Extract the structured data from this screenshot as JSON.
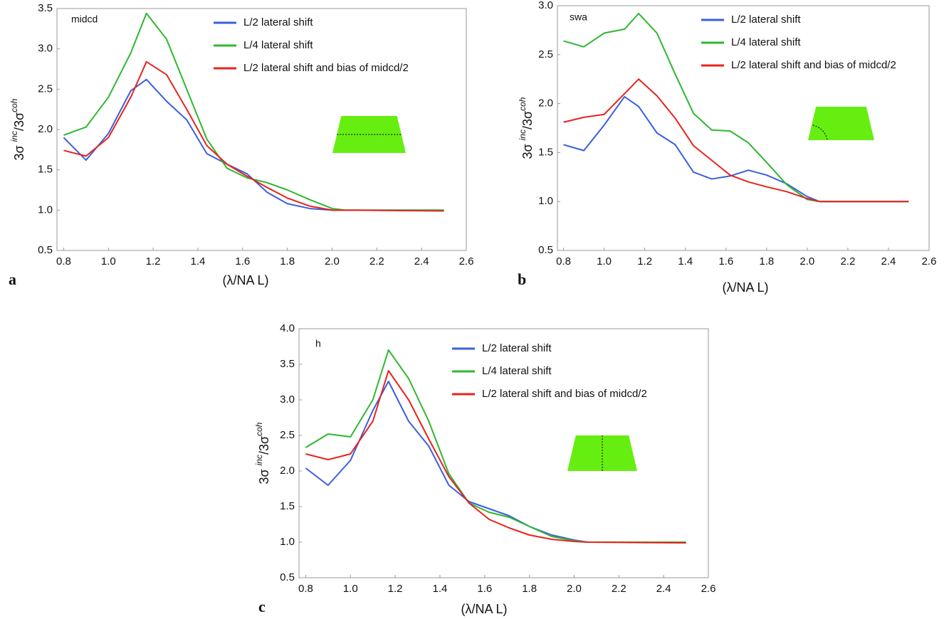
{
  "chart_data": [
    {
      "type": "line",
      "panel_label": "a",
      "annotation": "midcd",
      "ylabel": [
        "3σ ",
        "inc",
        "/3σ",
        "coh"
      ],
      "xlabel": "(λ/NA L)",
      "x": [
        0.8,
        0.9,
        1.0,
        1.1,
        1.17,
        1.26,
        1.35,
        1.44,
        1.53,
        1.62,
        1.71,
        1.8,
        1.9,
        2.0,
        2.06,
        2.5
      ],
      "series": [
        {
          "name": "L/2 lateral shift",
          "color": "#3a5fe0",
          "values": [
            1.9,
            1.62,
            1.95,
            2.48,
            2.62,
            2.35,
            2.12,
            1.7,
            1.57,
            1.45,
            1.22,
            1.08,
            1.02,
            1.0,
            1.0,
            1.0
          ]
        },
        {
          "name": "L/4 lateral shift",
          "color": "#2eb82e",
          "values": [
            1.93,
            2.03,
            2.4,
            2.95,
            3.44,
            3.12,
            2.5,
            1.88,
            1.52,
            1.4,
            1.34,
            1.25,
            1.13,
            1.02,
            1.0,
            1.0
          ]
        },
        {
          "name": "L/2 lateral shift and bias of midcd/2",
          "color": "#e8231e",
          "values": [
            1.74,
            1.67,
            1.9,
            2.4,
            2.84,
            2.68,
            2.25,
            1.8,
            1.57,
            1.42,
            1.28,
            1.15,
            1.05,
            1.0,
            1.0,
            0.99
          ]
        }
      ],
      "xlim": [
        0.77,
        2.6
      ],
      "xticks": [
        0.8,
        {
          "value": 1,
          "label": "1.0"
        },
        1.2,
        1.4,
        1.6,
        1.8,
        {
          "value": 2,
          "label": "2.0"
        },
        2.2,
        2.4,
        2.6
      ],
      "ylim": [
        0.5,
        3.5
      ],
      "yticks": [
        0.5,
        {
          "value": 1,
          "label": "1.0"
        },
        1.5,
        {
          "value": 2,
          "label": "2.0"
        },
        2.5,
        {
          "value": 3,
          "label": "3.0"
        },
        3.5
      ]
    },
    {
      "type": "line",
      "panel_label": "b",
      "annotation": "swa",
      "ylabel": [
        "3σ ",
        "inc",
        "/3σ",
        "coh"
      ],
      "xlabel": "(λ/NA L)",
      "x": [
        0.8,
        0.9,
        1.0,
        1.1,
        1.17,
        1.26,
        1.35,
        1.44,
        1.53,
        1.62,
        1.71,
        1.8,
        1.9,
        2.0,
        2.06,
        2.5
      ],
      "series": [
        {
          "name": "L/2 lateral shift",
          "color": "#3a5fe0",
          "values": [
            1.58,
            1.52,
            1.78,
            2.07,
            1.97,
            1.7,
            1.58,
            1.3,
            1.23,
            1.26,
            1.32,
            1.27,
            1.18,
            1.05,
            1.0,
            1.0
          ]
        },
        {
          "name": "L/4 lateral shift",
          "color": "#2eb82e",
          "values": [
            2.64,
            2.58,
            2.72,
            2.76,
            2.92,
            2.72,
            2.3,
            1.9,
            1.73,
            1.72,
            1.6,
            1.4,
            1.17,
            1.02,
            1.0,
            1.0
          ]
        },
        {
          "name": "L/2 lateral shift and bias of midcd/2",
          "color": "#e8231e",
          "values": [
            1.81,
            1.86,
            1.89,
            2.1,
            2.25,
            2.08,
            1.85,
            1.57,
            1.42,
            1.27,
            1.2,
            1.15,
            1.1,
            1.03,
            1.0,
            1.0
          ]
        }
      ],
      "xlim": [
        0.77,
        2.6
      ],
      "xticks": [
        0.8,
        {
          "value": 1,
          "label": "1.0"
        },
        1.2,
        1.4,
        1.6,
        1.8,
        {
          "value": 2,
          "label": "2.0"
        },
        2.2,
        2.4,
        2.6
      ],
      "ylim": [
        0.5,
        3.0
      ],
      "yticks": [
        0.5,
        {
          "value": 1,
          "label": "1.0"
        },
        1.5,
        {
          "value": 2,
          "label": "2.0"
        },
        2.5,
        {
          "value": 3,
          "label": "3.0"
        }
      ]
    },
    {
      "type": "line",
      "panel_label": "c",
      "annotation": "h",
      "ylabel": [
        "3σ ",
        "inc",
        "/3σ",
        "coh"
      ],
      "xlabel": "(λ/NA L)",
      "x": [
        0.8,
        0.9,
        1.0,
        1.1,
        1.17,
        1.26,
        1.35,
        1.44,
        1.53,
        1.62,
        1.71,
        1.8,
        1.9,
        2.0,
        2.06,
        2.5
      ],
      "series": [
        {
          "name": "L/2 lateral shift",
          "color": "#3a5fe0",
          "values": [
            2.04,
            1.8,
            2.15,
            2.85,
            3.26,
            2.7,
            2.35,
            1.8,
            1.57,
            1.47,
            1.37,
            1.22,
            1.1,
            1.03,
            1.0,
            1.0
          ]
        },
        {
          "name": "L/4 lateral shift",
          "color": "#2eb82e",
          "values": [
            2.33,
            2.52,
            2.48,
            3.0,
            3.7,
            3.3,
            2.7,
            1.96,
            1.55,
            1.42,
            1.35,
            1.22,
            1.08,
            1.02,
            1.0,
            1.0
          ]
        },
        {
          "name": "L/2 lateral shift and bias of midcd/2",
          "color": "#e8231e",
          "values": [
            2.24,
            2.16,
            2.24,
            2.7,
            3.41,
            3.0,
            2.45,
            1.92,
            1.55,
            1.32,
            1.2,
            1.1,
            1.04,
            1.01,
            1.0,
            0.99
          ]
        }
      ],
      "xlim": [
        0.77,
        2.6
      ],
      "xticks": [
        0.8,
        {
          "value": 1,
          "label": "1.0"
        },
        1.2,
        1.4,
        1.6,
        1.8,
        {
          "value": 2,
          "label": "2.0"
        },
        2.2,
        2.4,
        2.6
      ],
      "ylim": [
        0.5,
        4.0
      ],
      "yticks": [
        0.5,
        {
          "value": 1,
          "label": "1.0"
        },
        1.5,
        {
          "value": 2,
          "label": "2.0"
        },
        2.5,
        {
          "value": 3,
          "label": "3.0"
        },
        3.5,
        {
          "value": 4,
          "label": "4.0"
        }
      ]
    }
  ]
}
